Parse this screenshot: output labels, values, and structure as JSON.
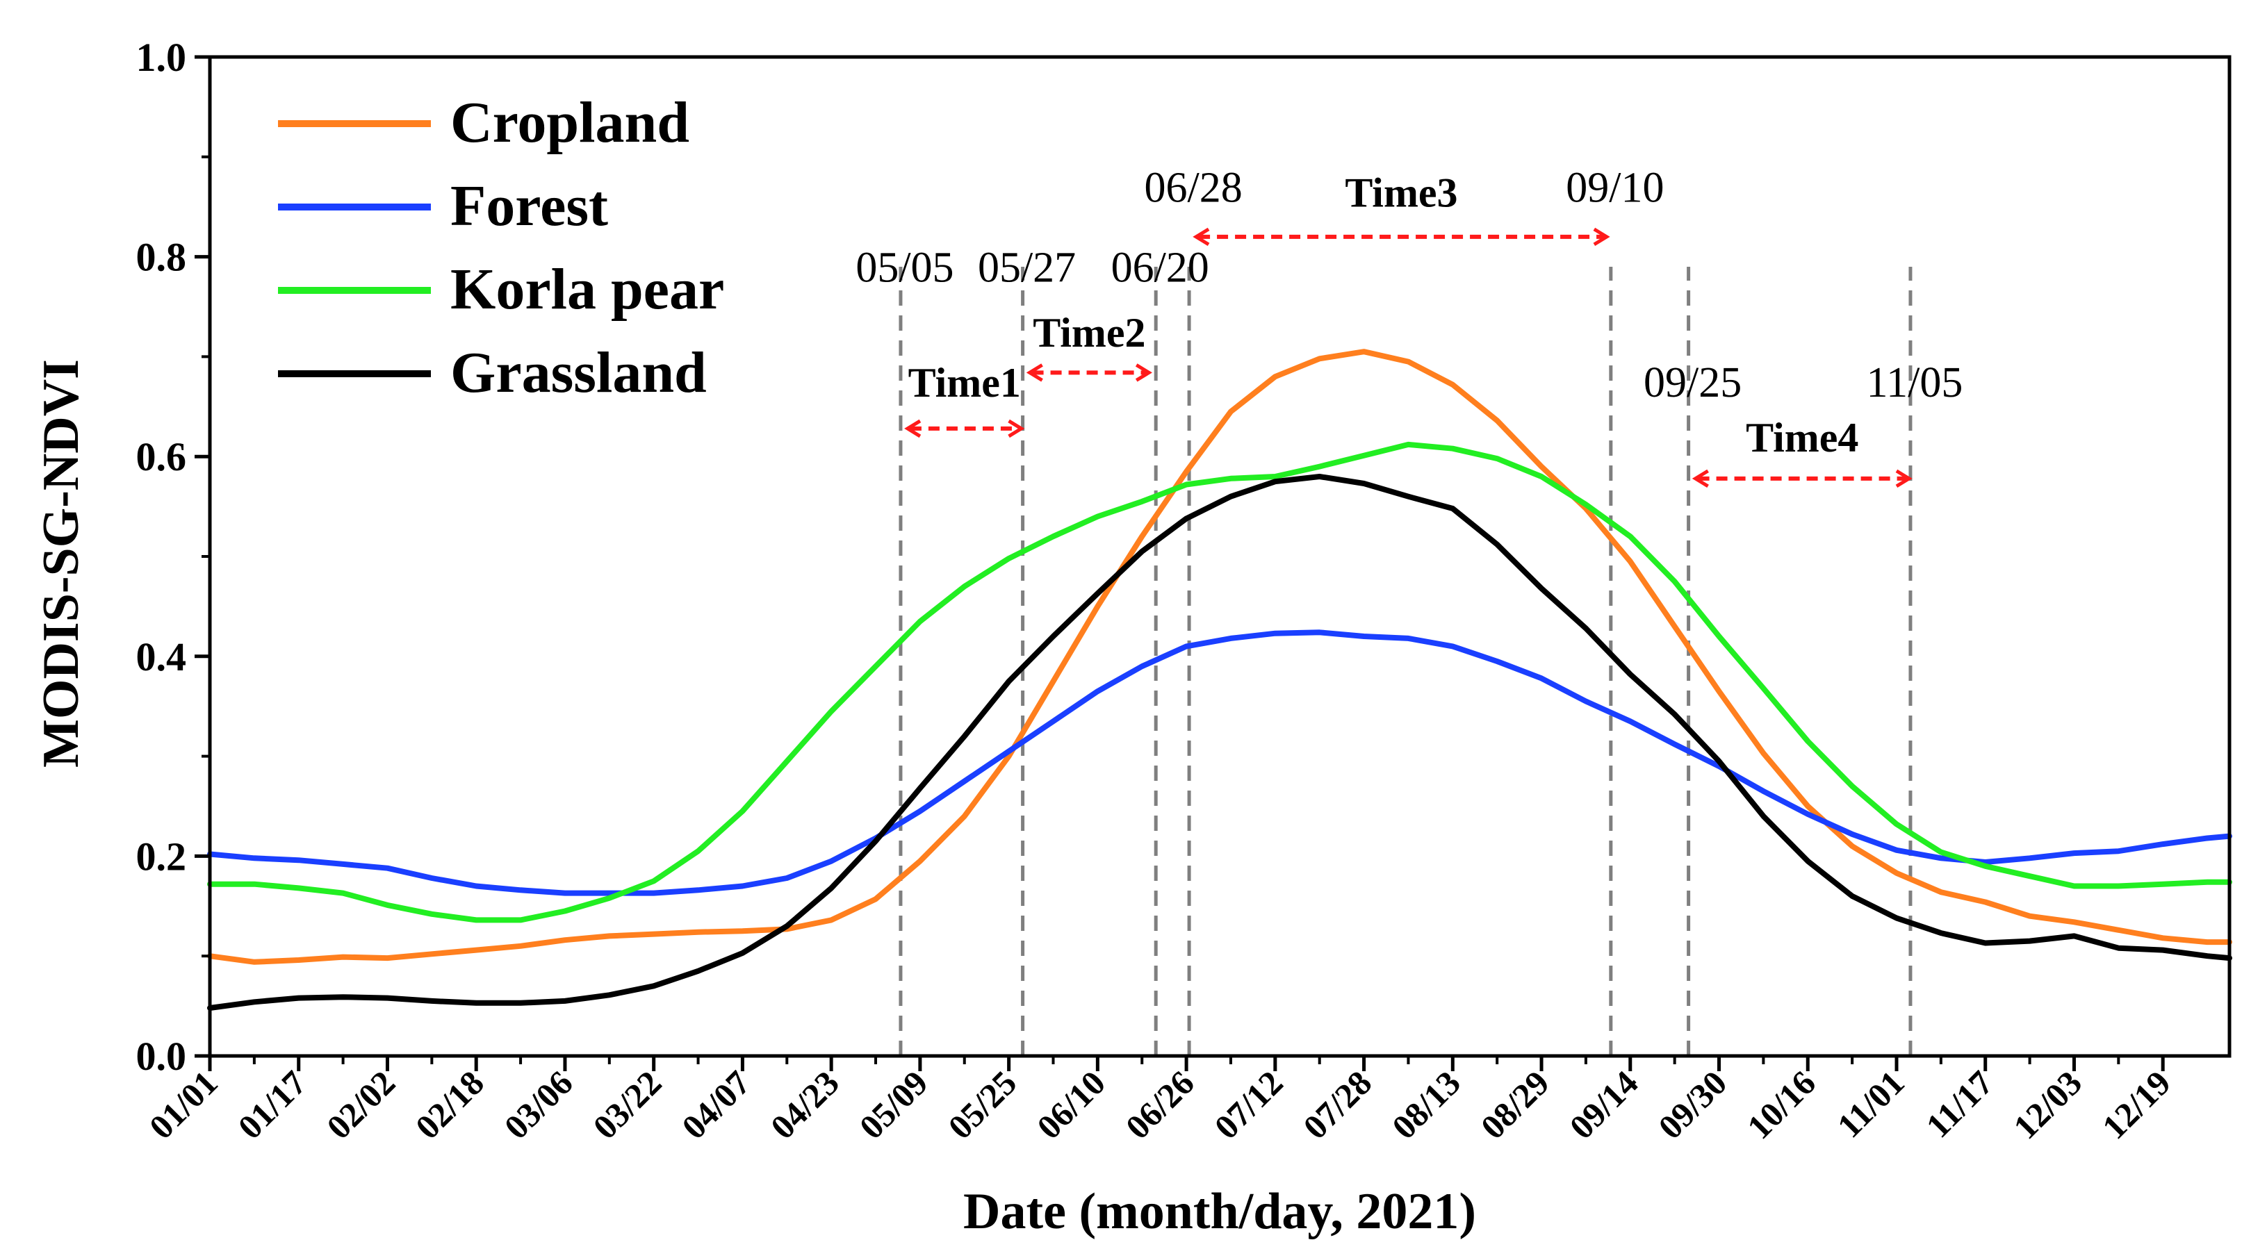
{
  "chart_data": {
    "type": "line",
    "xlabel": "Date (month/day, 2021)",
    "ylabel": "MODIS-SG-NDVI",
    "ylim": [
      0,
      1
    ],
    "yticks": [
      "0.0",
      "0.2",
      "0.4",
      "0.6",
      "0.8",
      "1.0"
    ],
    "xlim": [
      1,
      365
    ],
    "xticks": [
      {
        "label": "01/01",
        "doy": 1
      },
      {
        "label": "01/17",
        "doy": 17
      },
      {
        "label": "02/02",
        "doy": 33
      },
      {
        "label": "02/18",
        "doy": 49
      },
      {
        "label": "03/06",
        "doy": 65
      },
      {
        "label": "03/22",
        "doy": 81
      },
      {
        "label": "04/07",
        "doy": 97
      },
      {
        "label": "04/23",
        "doy": 113
      },
      {
        "label": "05/09",
        "doy": 129
      },
      {
        "label": "05/25",
        "doy": 145
      },
      {
        "label": "06/10",
        "doy": 161
      },
      {
        "label": "06/26",
        "doy": 177
      },
      {
        "label": "07/12",
        "doy": 193
      },
      {
        "label": "07/28",
        "doy": 209
      },
      {
        "label": "08/13",
        "doy": 225
      },
      {
        "label": "08/29",
        "doy": 241
      },
      {
        "label": "09/14",
        "doy": 257
      },
      {
        "label": "09/30",
        "doy": 273
      },
      {
        "label": "10/16",
        "doy": 289
      },
      {
        "label": "11/01",
        "doy": 305
      },
      {
        "label": "11/17",
        "doy": 321
      },
      {
        "label": "12/03",
        "doy": 337
      },
      {
        "label": "12/19",
        "doy": 353
      }
    ],
    "series": [
      {
        "name": "Cropland",
        "color": "#ff7f1e",
        "doy": [
          1,
          9,
          17,
          25,
          33,
          41,
          49,
          57,
          65,
          73,
          81,
          89,
          97,
          105,
          113,
          121,
          129,
          137,
          145,
          153,
          161,
          169,
          177,
          185,
          193,
          201,
          209,
          217,
          225,
          233,
          241,
          249,
          257,
          265,
          273,
          281,
          289,
          297,
          305,
          313,
          321,
          329,
          337,
          345,
          353,
          361,
          365
        ],
        "values": [
          0.1,
          0.094,
          0.096,
          0.099,
          0.098,
          0.102,
          0.106,
          0.11,
          0.116,
          0.12,
          0.122,
          0.124,
          0.125,
          0.127,
          0.136,
          0.157,
          0.195,
          0.24,
          0.3,
          0.375,
          0.45,
          0.52,
          0.585,
          0.645,
          0.68,
          0.698,
          0.705,
          0.695,
          0.672,
          0.636,
          0.59,
          0.548,
          0.495,
          0.43,
          0.365,
          0.303,
          0.25,
          0.21,
          0.183,
          0.164,
          0.154,
          0.14,
          0.134,
          0.126,
          0.118,
          0.114,
          0.114
        ]
      },
      {
        "name": "Forest",
        "color": "#1a3fff",
        "doy": [
          1,
          9,
          17,
          25,
          33,
          41,
          49,
          57,
          65,
          73,
          81,
          89,
          97,
          105,
          113,
          121,
          129,
          137,
          145,
          153,
          161,
          169,
          177,
          185,
          193,
          201,
          209,
          217,
          225,
          233,
          241,
          249,
          257,
          265,
          273,
          281,
          289,
          297,
          305,
          313,
          321,
          329,
          337,
          345,
          353,
          361,
          365
        ],
        "values": [
          0.202,
          0.198,
          0.196,
          0.192,
          0.188,
          0.178,
          0.17,
          0.166,
          0.163,
          0.163,
          0.163,
          0.166,
          0.17,
          0.178,
          0.195,
          0.218,
          0.245,
          0.275,
          0.305,
          0.335,
          0.365,
          0.39,
          0.41,
          0.418,
          0.423,
          0.424,
          0.42,
          0.418,
          0.41,
          0.395,
          0.378,
          0.355,
          0.335,
          0.312,
          0.29,
          0.265,
          0.242,
          0.222,
          0.206,
          0.198,
          0.194,
          0.198,
          0.203,
          0.205,
          0.212,
          0.218,
          0.22
        ]
      },
      {
        "name": "Korla pear",
        "color": "#22ee22",
        "doy": [
          1,
          9,
          17,
          25,
          33,
          41,
          49,
          57,
          65,
          73,
          81,
          89,
          97,
          105,
          113,
          121,
          129,
          137,
          145,
          153,
          161,
          169,
          177,
          185,
          193,
          201,
          209,
          217,
          225,
          233,
          241,
          249,
          257,
          265,
          273,
          281,
          289,
          297,
          305,
          313,
          321,
          329,
          337,
          345,
          353,
          361,
          365
        ],
        "values": [
          0.172,
          0.172,
          0.168,
          0.163,
          0.151,
          0.142,
          0.136,
          0.136,
          0.145,
          0.158,
          0.175,
          0.205,
          0.245,
          0.295,
          0.345,
          0.39,
          0.435,
          0.47,
          0.498,
          0.52,
          0.54,
          0.555,
          0.572,
          0.578,
          0.58,
          0.59,
          0.601,
          0.612,
          0.608,
          0.598,
          0.58,
          0.552,
          0.52,
          0.475,
          0.42,
          0.368,
          0.315,
          0.27,
          0.232,
          0.204,
          0.19,
          0.18,
          0.17,
          0.17,
          0.172,
          0.174,
          0.174
        ]
      },
      {
        "name": "Grassland",
        "color": "#000000",
        "doy": [
          1,
          9,
          17,
          25,
          33,
          41,
          49,
          57,
          65,
          73,
          81,
          89,
          97,
          105,
          113,
          121,
          129,
          137,
          145,
          153,
          161,
          169,
          177,
          185,
          193,
          201,
          209,
          217,
          225,
          233,
          241,
          249,
          257,
          265,
          273,
          281,
          289,
          297,
          305,
          313,
          321,
          329,
          337,
          345,
          353,
          361,
          365
        ],
        "values": [
          0.048,
          0.054,
          0.058,
          0.059,
          0.058,
          0.055,
          0.053,
          0.053,
          0.055,
          0.061,
          0.07,
          0.085,
          0.103,
          0.13,
          0.168,
          0.215,
          0.268,
          0.32,
          0.375,
          0.42,
          0.463,
          0.505,
          0.538,
          0.56,
          0.575,
          0.58,
          0.573,
          0.56,
          0.548,
          0.512,
          0.468,
          0.428,
          0.382,
          0.342,
          0.295,
          0.24,
          0.195,
          0.16,
          0.138,
          0.123,
          0.113,
          0.115,
          0.12,
          0.108,
          0.106,
          0.1,
          0.098
        ]
      }
    ],
    "reference_lines": [
      {
        "label": "05/05",
        "doy": 125.5,
        "label_y": 0.775
      },
      {
        "label": "05/27",
        "doy": 147.5,
        "label_y": 0.775
      },
      {
        "label": "06/20",
        "doy": 171.5,
        "label_y": 0.775
      },
      {
        "label": "06/28",
        "doy": 177.5,
        "label_y": 0.855
      },
      {
        "label": "09/10",
        "doy": 253.5,
        "label_y": 0.855
      },
      {
        "label": "09/25",
        "doy": 267.5,
        "label_y": 0.66
      },
      {
        "label": "11/05",
        "doy": 307.5,
        "label_y": 0.66
      }
    ],
    "periods": [
      {
        "label": "Time1",
        "start_doy": 126.5,
        "end_doy": 147.5,
        "y": 0.628,
        "label_y": 0.66
      },
      {
        "label": "Time2",
        "start_doy": 148.5,
        "end_doy": 170.5,
        "y": 0.684,
        "label_y": 0.71
      },
      {
        "label": "Time3",
        "start_doy": 178.5,
        "end_doy": 253,
        "y": 0.82,
        "label_y": 0.85
      },
      {
        "label": "Time4",
        "start_doy": 268.5,
        "end_doy": 307.5,
        "y": 0.578,
        "label_y": 0.605
      }
    ],
    "legend_position": "top-left"
  }
}
